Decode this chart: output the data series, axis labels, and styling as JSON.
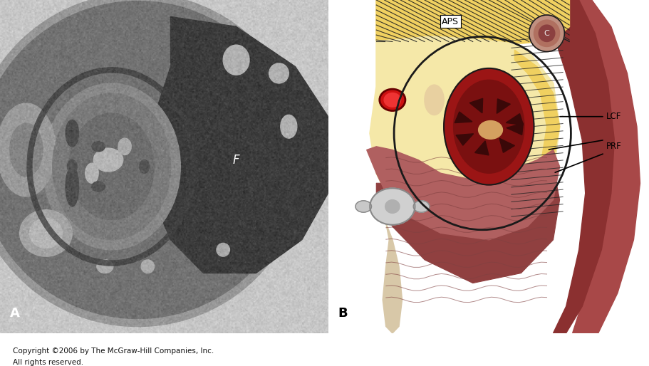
{
  "fig_width": 9.12,
  "fig_height": 5.14,
  "dpi": 100,
  "bg_color": "#ffffff",
  "label_A": "A",
  "label_B": "B",
  "label_F": "F",
  "label_APS": "APS",
  "label_LCF": "LCF",
  "label_PRF": "PRF",
  "label_C": "C",
  "copyright_line1": "Copyright ©2006 by The McGraw-Hill Companies, Inc.",
  "copyright_line2": "All rights reserved.",
  "fat_color": "#f5e8a8",
  "hatch_color": "#c8a030",
  "hatch_bg": "#f0d060",
  "kidney_dark": "#7a1010",
  "kidney_mid": "#9b1515",
  "kidney_pelvis": "#d4a060",
  "aorta_red": "#cc1111",
  "aorta_bright": "#ee3333",
  "organ_brown": "#b06060",
  "organ_dark": "#904040",
  "spine_tan": "#d8c8a8",
  "body_wall_red": "#a84848",
  "body_wall_dark": "#8b3030",
  "outline_dark": "#1a1a1a",
  "colon_outer": "#c09080",
  "colon_mid": "#b07060",
  "colon_inner": "#8b4040"
}
